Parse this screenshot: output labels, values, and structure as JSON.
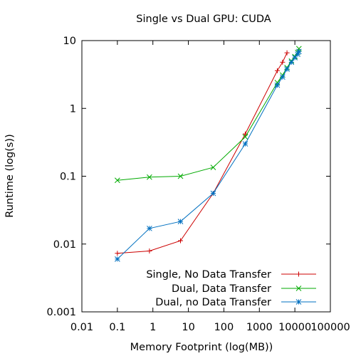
{
  "chart_data": {
    "type": "line",
    "title": "Single vs Dual GPU: CUDA",
    "xlabel": "Memory Footprint (log(MB))",
    "ylabel": "Runtime (log(s))",
    "xscale": "log",
    "yscale": "log",
    "xlim": [
      0.01,
      100000
    ],
    "ylim": [
      0.001,
      10
    ],
    "x_ticks": [
      "0.01",
      "0.1",
      "1",
      "10",
      "100",
      "1000",
      "10000",
      "100000"
    ],
    "y_ticks": [
      "0.001",
      "0.01",
      "0.1",
      "1",
      "10"
    ],
    "grid": false,
    "legend_position": "bottom-right",
    "series": [
      {
        "name": "Single, No Data Transfer",
        "color": "#cc0000",
        "marker": "plus",
        "x": [
          0.1,
          0.8,
          6,
          50,
          400,
          3200,
          4500,
          6000
        ],
        "y": [
          0.0073,
          0.0079,
          0.0112,
          0.056,
          0.42,
          3.6,
          4.8,
          6.6
        ]
      },
      {
        "name": "Dual, Data Transfer",
        "color": "#00aa00",
        "marker": "cross",
        "x": [
          0.1,
          0.8,
          6,
          50,
          400,
          3200,
          4500,
          6000,
          8000,
          10000,
          12000,
          13000
        ],
        "y": [
          0.087,
          0.097,
          0.1,
          0.135,
          0.38,
          2.4,
          3.1,
          4.0,
          5.0,
          5.8,
          6.7,
          7.6
        ]
      },
      {
        "name": "Dual, no Data Transfer",
        "color": "#0070c0",
        "marker": "star",
        "x": [
          0.1,
          0.8,
          6,
          50,
          400,
          3200,
          4500,
          6000,
          8000,
          10000,
          12000,
          13000
        ],
        "y": [
          0.006,
          0.017,
          0.0215,
          0.056,
          0.3,
          2.2,
          2.9,
          3.8,
          4.8,
          5.6,
          6.3,
          6.9
        ]
      }
    ]
  }
}
